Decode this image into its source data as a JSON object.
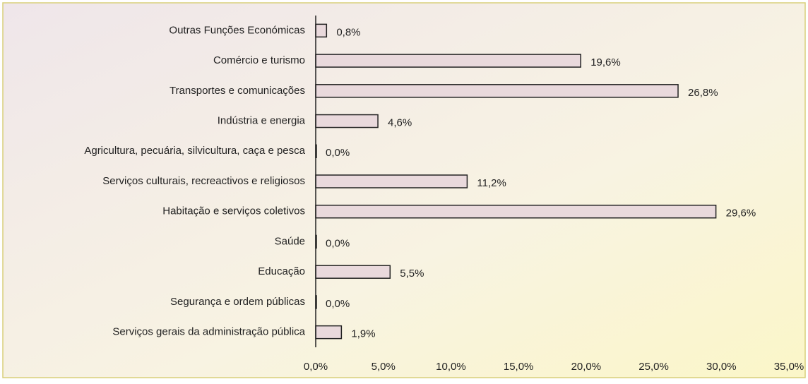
{
  "chart_data": {
    "type": "bar",
    "orientation": "horizontal",
    "categories": [
      "Outras Funções Económicas",
      "Comércio e turismo",
      "Transportes e comunicações",
      "Indústria e energia",
      "Agricultura, pecuária, silvicultura, caça e pesca",
      "Serviços culturais, recreactivos e religiosos",
      "Habitação e serviços coletivos",
      "Saúde",
      "Educação",
      "Segurança e ordem públicas",
      "Serviços gerais da administração pública"
    ],
    "values": [
      0.8,
      19.6,
      26.8,
      4.6,
      0.0,
      11.2,
      29.6,
      0.0,
      5.5,
      0.0,
      1.9
    ],
    "value_labels": [
      "0,8%",
      "19,6%",
      "26,8%",
      "4,6%",
      "0,0%",
      "11,2%",
      "29,6%",
      "0,0%",
      "5,5%",
      "0,0%",
      "1,9%"
    ],
    "color": "#e9d9dc",
    "xlim": [
      0,
      35
    ],
    "xticks": [
      {
        "value": 0,
        "label": "0,0%"
      },
      {
        "value": 5,
        "label": "5,0%"
      },
      {
        "value": 10,
        "label": "10,0%"
      },
      {
        "value": 15,
        "label": "15,0%"
      },
      {
        "value": 20,
        "label": "20,0%"
      },
      {
        "value": 25,
        "label": "25,0%"
      },
      {
        "value": 30,
        "label": "30,0%"
      },
      {
        "value": 35,
        "label": "35,0%"
      }
    ],
    "grid": false
  }
}
